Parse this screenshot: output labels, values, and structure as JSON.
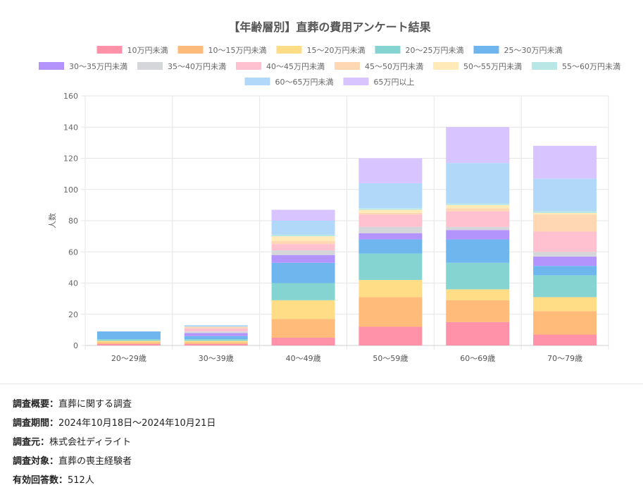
{
  "chart_data": {
    "type": "bar",
    "stacked": true,
    "title": "【年齢層別】直葬の費用アンケート結果",
    "xlabel": "",
    "ylabel": "人数",
    "ylim": [
      0,
      160
    ],
    "yticks": [
      0,
      20,
      40,
      60,
      80,
      100,
      120,
      140,
      160
    ],
    "grid": true,
    "legend_position": "top",
    "categories": [
      "20〜29歳",
      "30〜39歳",
      "40〜49歳",
      "50〜59歳",
      "60〜69歳",
      "70〜79歳"
    ],
    "series": [
      {
        "name": "10万円未満",
        "color": "#ff92a9",
        "values": [
          1,
          1,
          5,
          12,
          15,
          7
        ]
      },
      {
        "name": "10〜15万円未満",
        "color": "#ffbb7a",
        "values": [
          1,
          1,
          12,
          19,
          14,
          15
        ]
      },
      {
        "name": "15〜20万円未満",
        "color": "#ffdc86",
        "values": [
          1,
          1,
          12,
          11,
          7,
          9
        ]
      },
      {
        "name": "20〜25万円未満",
        "color": "#85d4d2",
        "values": [
          1,
          1,
          11,
          17,
          17,
          14
        ]
      },
      {
        "name": "25〜30万円未満",
        "color": "#70b6ee",
        "values": [
          5,
          2,
          13,
          9,
          15,
          6
        ]
      },
      {
        "name": "30〜35万円未満",
        "color": "#b394fd",
        "values": [
          0,
          2,
          5,
          4,
          6,
          6
        ]
      },
      {
        "name": "35〜40万円未満",
        "color": "#d5d6da",
        "values": [
          0,
          1,
          3,
          4,
          2,
          3
        ]
      },
      {
        "name": "40〜45万円未満",
        "color": "#ffc1cf",
        "values": [
          0,
          2,
          4,
          8,
          10,
          13
        ]
      },
      {
        "name": "45〜50万円未満",
        "color": "#ffd8b3",
        "values": [
          0,
          1,
          2,
          1,
          2,
          11
        ]
      },
      {
        "name": "50〜55万円未満",
        "color": "#ffeab8",
        "values": [
          0,
          0,
          3,
          2,
          2,
          1
        ]
      },
      {
        "name": "55〜60万円未満",
        "color": "#b9e7e6",
        "values": [
          0,
          0,
          1,
          1,
          1,
          1
        ]
      },
      {
        "name": "60〜65万円未満",
        "color": "#b1d8f8",
        "values": [
          0,
          1,
          9,
          16,
          26,
          21
        ]
      },
      {
        "name": "65万円以上",
        "color": "#d8c4fe",
        "values": [
          0,
          0,
          7,
          16,
          23,
          21
        ]
      }
    ]
  },
  "survey": {
    "overview": {
      "key": "調査概要：",
      "value": "直葬に関する調査"
    },
    "period": {
      "key": "調査期間：",
      "value": "2024年10月18日〜2024年10月21日"
    },
    "source": {
      "key": "調査元：",
      "value": "株式会社ディライト"
    },
    "target": {
      "key": "調査対象：",
      "value": "直葬の喪主経験者"
    },
    "responses": {
      "key": "有効回答数：",
      "value": "512人"
    }
  }
}
